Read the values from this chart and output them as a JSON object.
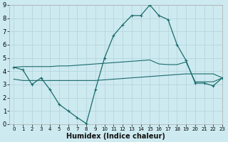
{
  "title": "",
  "xlabel": "Humidex (Indice chaleur)",
  "ylabel": "",
  "bg_color": "#cdeaf0",
  "line_color": "#1a6b6b",
  "grid_color": "#b8d8e0",
  "xlim": [
    -0.5,
    23
  ],
  "ylim": [
    0,
    9
  ],
  "xticks": [
    0,
    1,
    2,
    3,
    4,
    5,
    6,
    7,
    8,
    9,
    10,
    11,
    12,
    13,
    14,
    15,
    16,
    17,
    18,
    19,
    20,
    21,
    22,
    23
  ],
  "yticks": [
    0,
    1,
    2,
    3,
    4,
    5,
    6,
    7,
    8,
    9
  ],
  "line1_x": [
    0,
    1,
    2,
    3,
    4,
    5,
    6,
    7,
    8,
    9,
    10,
    11,
    12,
    13,
    14,
    15,
    16,
    17,
    18,
    19,
    20,
    21,
    22,
    23
  ],
  "line1_y": [
    4.3,
    4.1,
    3.0,
    3.5,
    2.6,
    1.5,
    1.0,
    0.5,
    0.05,
    2.6,
    5.0,
    6.7,
    7.5,
    8.2,
    8.2,
    9.0,
    8.2,
    7.9,
    6.0,
    4.8,
    3.1,
    3.1,
    2.9,
    3.5
  ],
  "line2_x": [
    0,
    1,
    2,
    3,
    4,
    5,
    6,
    7,
    8,
    9,
    10,
    11,
    12,
    13,
    14,
    15,
    16,
    17,
    18,
    19,
    20,
    21,
    22,
    23
  ],
  "line2_y": [
    4.3,
    4.35,
    4.35,
    4.35,
    4.35,
    4.4,
    4.4,
    4.45,
    4.5,
    4.55,
    4.6,
    4.65,
    4.7,
    4.75,
    4.8,
    4.85,
    4.55,
    4.5,
    4.5,
    4.7,
    3.2,
    3.2,
    3.2,
    3.5
  ],
  "line3_x": [
    0,
    1,
    2,
    3,
    4,
    5,
    6,
    7,
    8,
    9,
    10,
    11,
    12,
    13,
    14,
    15,
    16,
    17,
    18,
    19,
    20,
    21,
    22,
    23
  ],
  "line3_y": [
    3.4,
    3.3,
    3.3,
    3.3,
    3.3,
    3.3,
    3.3,
    3.3,
    3.3,
    3.3,
    3.35,
    3.4,
    3.45,
    3.5,
    3.55,
    3.6,
    3.65,
    3.7,
    3.75,
    3.8,
    3.8,
    3.8,
    3.8,
    3.5
  ]
}
